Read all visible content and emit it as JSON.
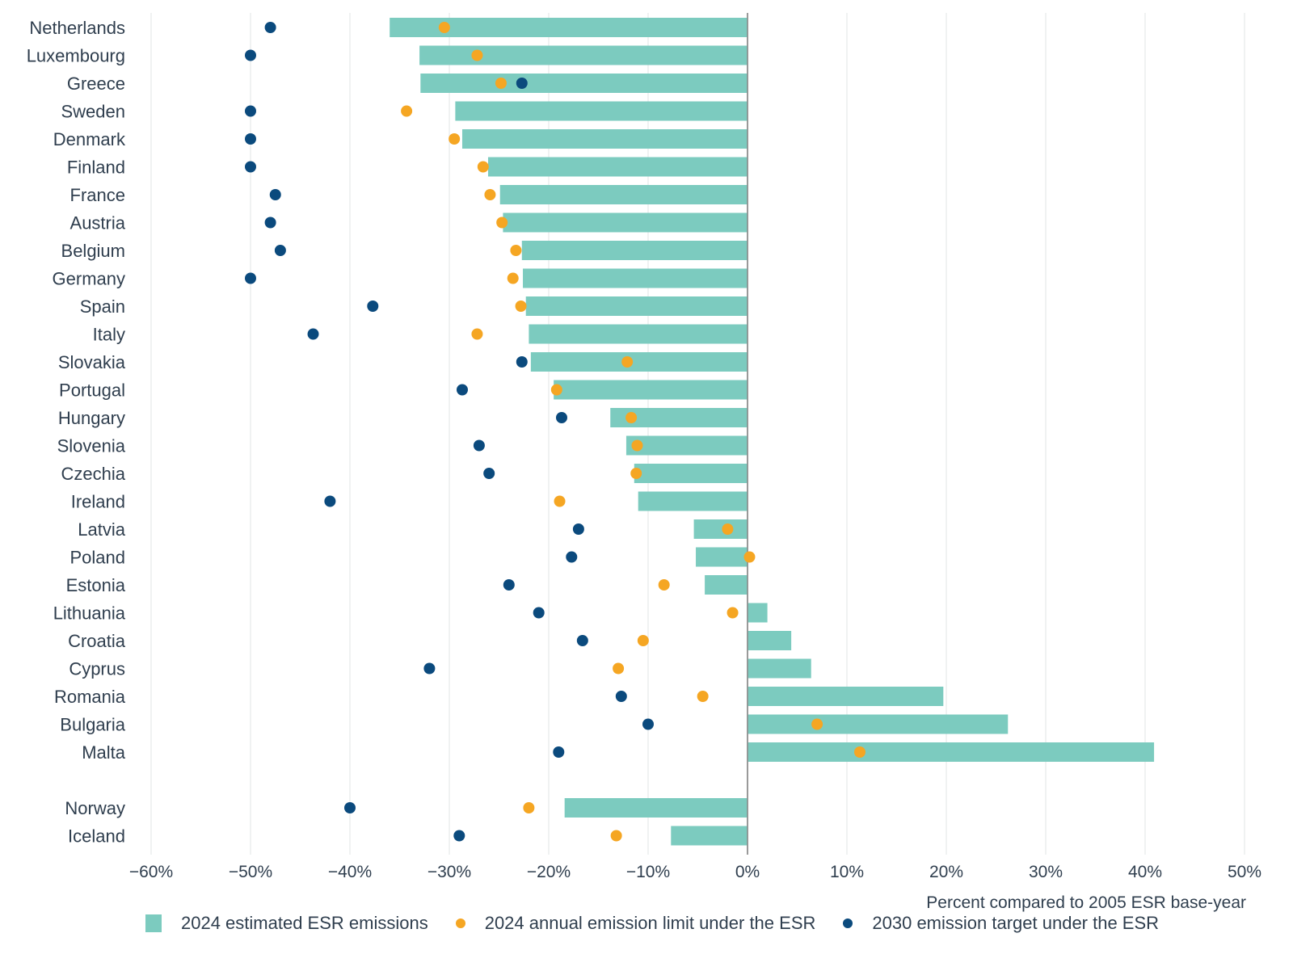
{
  "chart_data": {
    "type": "bar",
    "orientation": "horizontal",
    "title": "",
    "xlabel": "Percent compared to 2005 ESR base-year",
    "ylabel": "",
    "xlim": [
      -60,
      50
    ],
    "x_ticks": [
      "−60%",
      "−50%",
      "−40%",
      "−30%",
      "−20%",
      "−10%",
      "0%",
      "10%",
      "20%",
      "30%",
      "40%",
      "50%"
    ],
    "grid": "vertical",
    "legend_position": "bottom",
    "colors": {
      "bar": "#7ccbbf",
      "limit": "#f5a623",
      "target": "#0b4a7d"
    },
    "categories": [
      "Netherlands",
      "Luxembourg",
      "Greece",
      "Sweden",
      "Denmark",
      "Finland",
      "France",
      "Austria",
      "Belgium",
      "Germany",
      "Spain",
      "Italy",
      "Slovakia",
      "Portugal",
      "Hungary",
      "Slovenia",
      "Czechia",
      "Ireland",
      "Latvia",
      "Poland",
      "Estonia",
      "Lithuania",
      "Croatia",
      "Cyprus",
      "Romania",
      "Bulgaria",
      "Malta",
      "Norway",
      "Iceland"
    ],
    "gap_before": "Norway",
    "series": [
      {
        "name": "2024 estimated ESR emissions",
        "kind": "bar",
        "values": [
          -36,
          -33,
          -32.9,
          -29.4,
          -28.7,
          -26.1,
          -24.9,
          -24.6,
          -22.7,
          -22.6,
          -22.3,
          -22,
          -21.8,
          -19.5,
          -13.8,
          -12.2,
          -11.4,
          -11,
          -5.4,
          -5.2,
          -4.3,
          2,
          4.4,
          6.4,
          19.7,
          26.2,
          40.9,
          -18.4,
          -7.7
        ]
      },
      {
        "name": "2024 annual emission limit under the ESR",
        "kind": "dot",
        "values": [
          -30.5,
          -27.2,
          -24.8,
          -34.3,
          -29.5,
          -26.6,
          -25.9,
          -24.7,
          -23.3,
          -23.6,
          -22.8,
          -27.2,
          -12.1,
          -19.2,
          -11.7,
          -11.1,
          -11.2,
          -18.9,
          -2,
          0.2,
          -8.4,
          -1.5,
          -10.5,
          -13,
          -4.5,
          7,
          11.3,
          -22,
          -13.2
        ]
      },
      {
        "name": "2030 emission target under the ESR",
        "kind": "dot",
        "values": [
          -48,
          -50,
          -22.7,
          -50,
          -50,
          -50,
          -47.5,
          -48,
          -47,
          -50,
          -37.7,
          -43.7,
          -22.7,
          -28.7,
          -18.7,
          -27,
          -26,
          -42,
          -17,
          -17.7,
          -24,
          -21,
          -16.6,
          -32,
          -12.7,
          -10,
          -19,
          -40,
          -29
        ]
      }
    ]
  },
  "legend": {
    "bar": "2024 estimated ESR emissions",
    "limit": "2024 annual emission limit under the ESR",
    "target": "2030 emission target under the ESR"
  }
}
